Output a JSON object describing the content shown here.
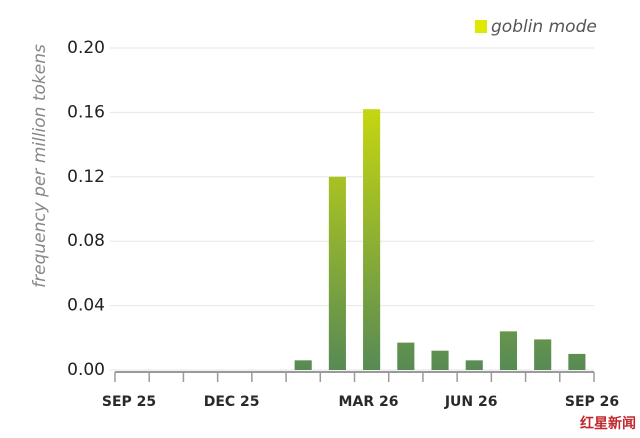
{
  "chart_data": {
    "type": "bar",
    "legend_label": "goblin mode",
    "y_label": "frequency per million tokens",
    "categories": [
      "SEP 25",
      null,
      null,
      "DEC 25",
      null,
      null,
      null,
      "MAR 26",
      null,
      null,
      "JUN 26",
      null,
      null,
      "SEP 26"
    ],
    "values": [
      0,
      0,
      0,
      0,
      0,
      0.006,
      0.12,
      0.162,
      0.017,
      0.012,
      0.006,
      0.024,
      0.019,
      0.01
    ],
    "color_bottom": "#578a55",
    "color_top": "#dfe800",
    "ylim": [
      0,
      0.2
    ],
    "yticks": [
      {
        "value": 0,
        "label": "0.00"
      },
      0.04,
      0.08,
      0.12,
      0.16,
      {
        "value": 0.2,
        "label": "0.20"
      }
    ],
    "grid": true,
    "legend_position": "top-right",
    "watermark": "红星新闻"
  }
}
